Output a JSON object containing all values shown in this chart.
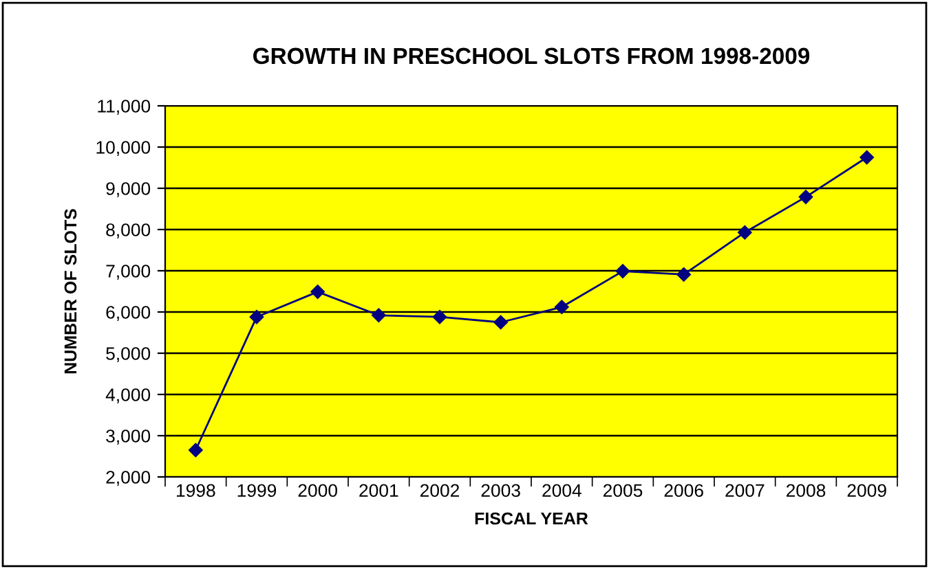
{
  "chart_data": {
    "type": "line",
    "title": "GROWTH IN PRESCHOOL SLOTS FROM 1998-2009",
    "xlabel": "FISCAL YEAR",
    "ylabel": "NUMBER OF SLOTS",
    "categories": [
      "1998",
      "1999",
      "2000",
      "2001",
      "2002",
      "2003",
      "2004",
      "2005",
      "2006",
      "2007",
      "2008",
      "2009"
    ],
    "series": [
      {
        "color": "#000080",
        "values": [
          2650,
          5880,
          6490,
          5920,
          5880,
          5750,
          6120,
          6990,
          6910,
          7930,
          8790,
          9750
        ]
      }
    ],
    "ylim": [
      2000,
      11000
    ],
    "yticks": [
      {
        "value": 2000,
        "label": "2,000"
      },
      {
        "value": 3000,
        "label": "3,000"
      },
      {
        "value": 4000,
        "label": "4,000"
      },
      {
        "value": 5000,
        "label": "5,000"
      },
      {
        "value": 6000,
        "label": "6,000"
      },
      {
        "value": 7000,
        "label": "7,000"
      },
      {
        "value": 8000,
        "label": "8,000"
      },
      {
        "value": 9000,
        "label": "9,000"
      },
      {
        "value": 10000,
        "label": "10,000"
      },
      {
        "value": 11000,
        "label": "11,000"
      }
    ],
    "grid": "y",
    "marker": "diamond",
    "line_style": "solid"
  }
}
